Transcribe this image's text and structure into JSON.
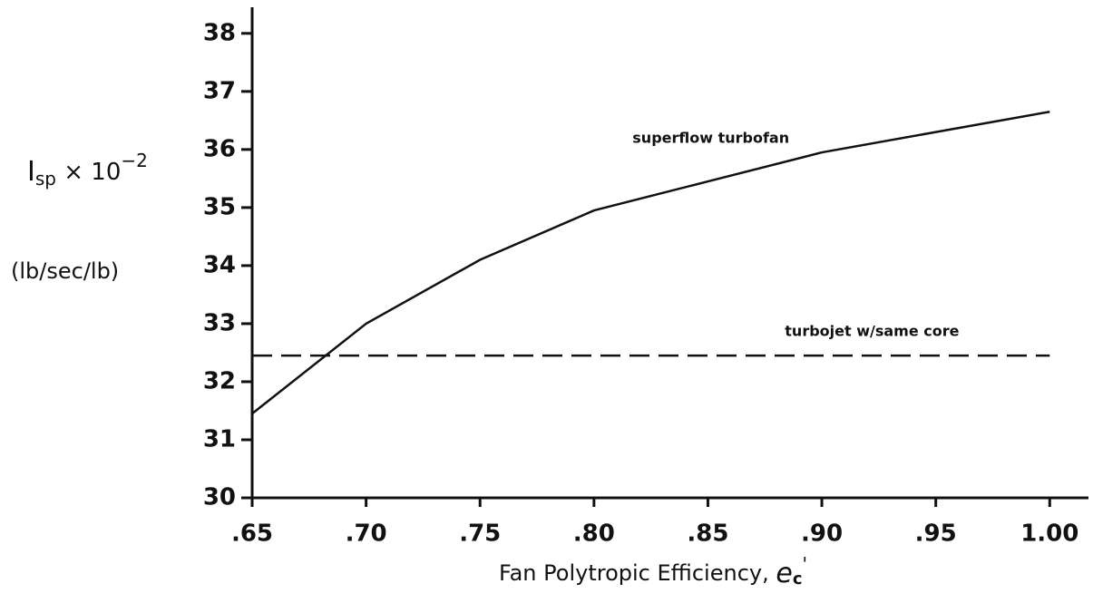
{
  "chart_data": {
    "type": "line",
    "x": [
      0.65,
      0.7,
      0.75,
      0.8,
      0.85,
      0.9,
      0.95,
      1.0
    ],
    "series": [
      {
        "name": "superflow turbofan",
        "color": "#111111",
        "dashed": false,
        "values": [
          31.45,
          33.0,
          34.1,
          34.95,
          35.45,
          35.95,
          36.3,
          36.65
        ]
      },
      {
        "name": "turbojet w/same core",
        "color": "#111111",
        "dashed": true,
        "values": [
          32.45,
          32.45,
          32.45,
          32.45,
          32.45,
          32.45,
          32.45,
          32.45
        ]
      }
    ],
    "xlim": [
      0.65,
      1.017
    ],
    "ylim": [
      30,
      38.45
    ],
    "xticks": [
      {
        "value": 0.65,
        "label": ".65"
      },
      {
        "value": 0.7,
        "label": ".70"
      },
      {
        "value": 0.75,
        "label": ".75"
      },
      {
        "value": 0.8,
        "label": ".80"
      },
      {
        "value": 0.85,
        "label": ".85"
      },
      {
        "value": 0.9,
        "label": ".90"
      },
      {
        "value": 0.95,
        "label": ".95"
      },
      {
        "value": 1.0,
        "label": "1.00"
      }
    ],
    "yticks": [
      30,
      31,
      32,
      33,
      34,
      35,
      36,
      37,
      38
    ],
    "y_label_parts": [
      "I",
      "sp",
      " × 10",
      "−2"
    ],
    "y_unit": "(lb/sec/lb)",
    "x_label_parts": [
      "Fan Polytropic Efficiency, ",
      "e",
      "c",
      "'"
    ]
  }
}
